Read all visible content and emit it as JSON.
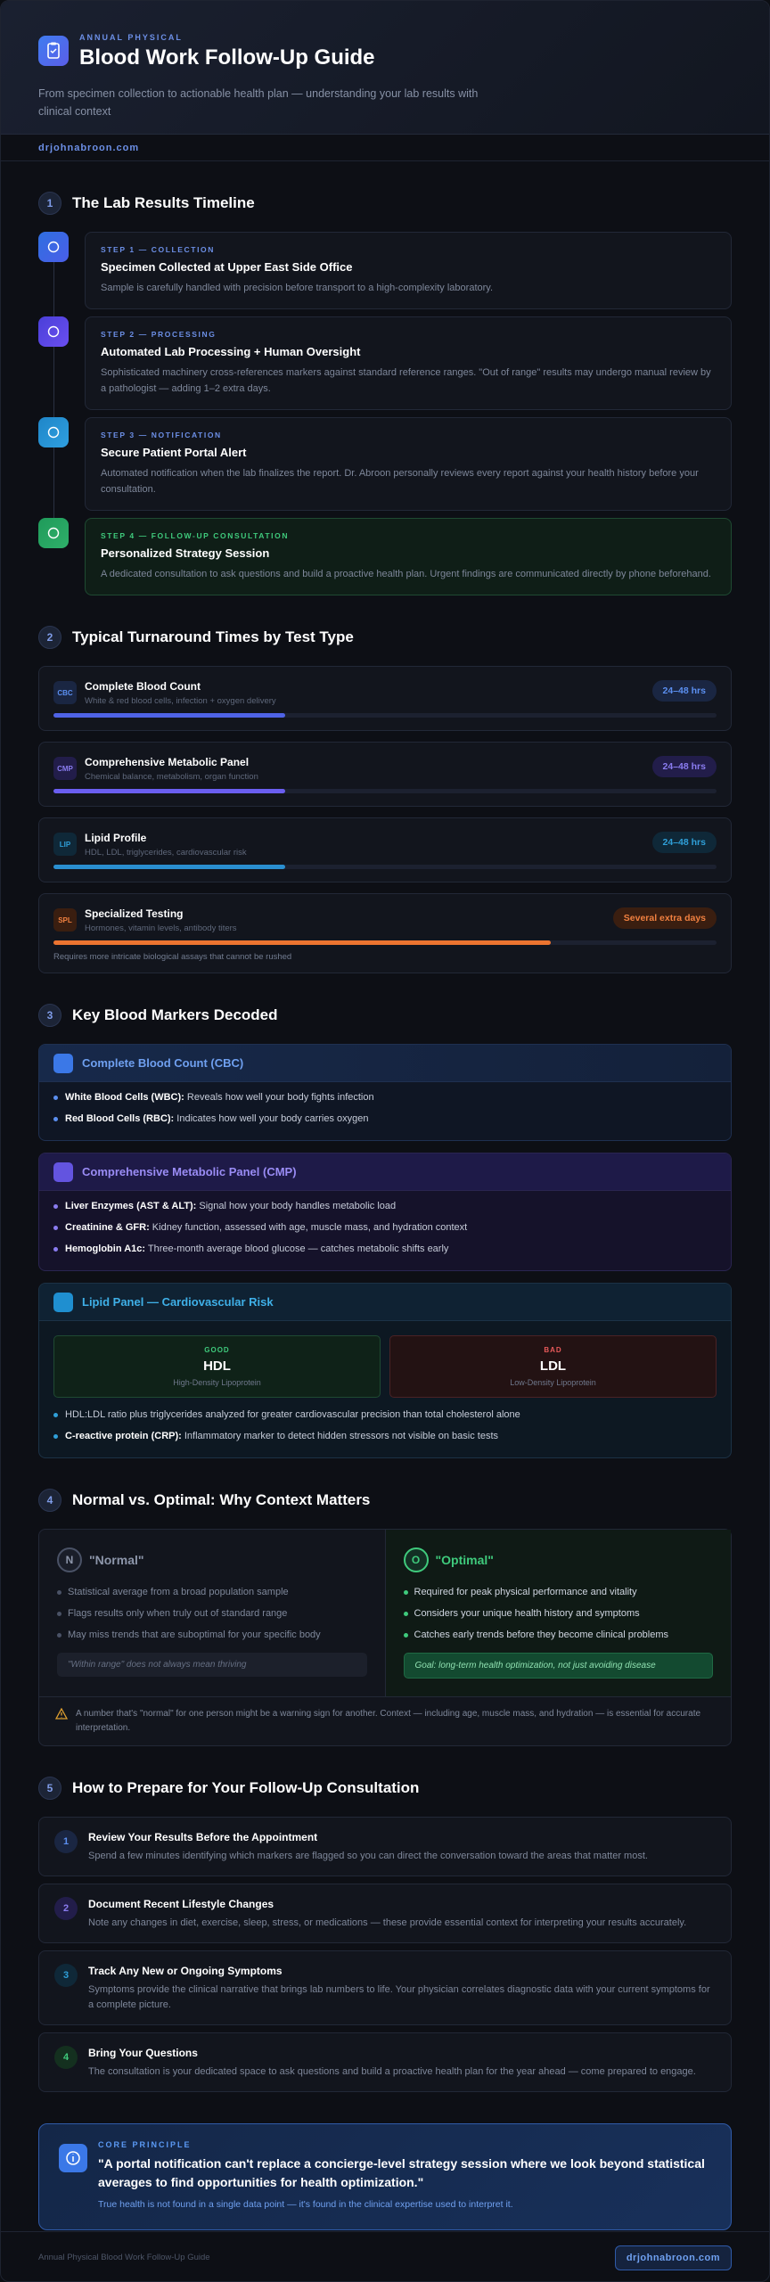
{
  "header": {
    "eyebrow": "ANNUAL PHYSICAL",
    "title": "Blood Work Follow-Up Guide",
    "subtitle": "From specimen collection to actionable health plan — understanding your lab results with clinical context"
  },
  "site": "drjohnabroon.com",
  "timeline": {
    "number": "1",
    "title": "The Lab Results Timeline",
    "steps": [
      {
        "label": "STEP 1 — COLLECTION",
        "title": "Specimen Collected at Upper East Side Office",
        "text": "Sample is carefully handled with precision before transport to a high-complexity laboratory."
      },
      {
        "label": "STEP 2 — PROCESSING",
        "title": "Automated Lab Processing + Human Oversight",
        "text": "Sophisticated machinery cross-references markers against standard reference ranges. \"Out of range\" results may undergo manual review by a pathologist — adding 1–2 extra days."
      },
      {
        "label": "STEP 3 — NOTIFICATION",
        "title": "Secure Patient Portal Alert",
        "text": "Automated notification when the lab finalizes the report. Dr. Abroon personally reviews every report against your health history before your consultation."
      },
      {
        "label": "STEP 4 — FOLLOW-UP CONSULTATION",
        "title": "Personalized Strategy Session",
        "text": "A dedicated consultation to ask questions and build a proactive health plan. Urgent findings are communicated directly by phone beforehand."
      }
    ]
  },
  "turnaround": {
    "number": "2",
    "title": "Typical Turnaround Times by Test Type",
    "tests": [
      {
        "abbr": "CBC",
        "name": "Complete Blood Count",
        "desc": "White & red blood cells, infection + oxygen delivery",
        "time": "24–48 hrs"
      },
      {
        "abbr": "CMP",
        "name": "Comprehensive Metabolic Panel",
        "desc": "Chemical balance, metabolism, organ function",
        "time": "24–48 hrs"
      },
      {
        "abbr": "LIP",
        "name": "Lipid Profile",
        "desc": "HDL, LDL, triglycerides, cardiovascular risk",
        "time": "24–48 hrs"
      },
      {
        "abbr": "SPL",
        "name": "Specialized Testing",
        "desc": "Hormones, vitamin levels, antibody titers",
        "time": "Several extra days",
        "note": "Requires more intricate biological assays that cannot be rushed"
      }
    ]
  },
  "markers": {
    "number": "3",
    "title": "Key Blood Markers Decoded",
    "cbc": {
      "title": "Complete Blood Count (CBC)",
      "items": [
        {
          "term": "White Blood Cells (WBC):",
          "text": "Reveals how well your body fights infection"
        },
        {
          "term": "Red Blood Cells (RBC):",
          "text": "Indicates how well your body carries oxygen"
        }
      ]
    },
    "cmp": {
      "title": "Comprehensive Metabolic Panel (CMP)",
      "items": [
        {
          "term": "Liver Enzymes (AST & ALT):",
          "text": "Signal how your body handles metabolic load"
        },
        {
          "term": "Creatinine & GFR:",
          "text": "Kidney function, assessed with age, muscle mass, and hydration context"
        },
        {
          "term": "Hemoglobin A1c:",
          "text": "Three-month average blood glucose — catches metabolic shifts early"
        }
      ]
    },
    "lipid": {
      "title": "Lipid Panel — Cardiovascular Risk",
      "hdl": {
        "tag": "GOOD",
        "name": "HDL",
        "full": "High-Density Lipoprotein"
      },
      "ldl": {
        "tag": "BAD",
        "name": "LDL",
        "full": "Low-Density Lipoprotein"
      },
      "items": [
        {
          "text": "HDL:LDL ratio plus triglycerides analyzed for greater cardiovascular precision than total cholesterol alone"
        },
        {
          "term": "C-reactive protein (CRP):",
          "text": "Inflammatory marker to detect hidden stressors not visible on basic tests"
        }
      ]
    }
  },
  "comparison": {
    "number": "4",
    "title": "Normal vs. Optimal: Why Context Matters",
    "normal": {
      "letter": "N",
      "title": "\"Normal\"",
      "items": [
        "Statistical average from a broad population sample",
        "Flags results only when truly out of standard range",
        "May miss trends that are suboptimal for your specific body"
      ],
      "note": "\"Within range\" does not always mean thriving"
    },
    "optimal": {
      "letter": "O",
      "title": "\"Optimal\"",
      "items": [
        "Required for peak physical performance and vitality",
        "Considers your unique health history and symptoms",
        "Catches early trends before they become clinical problems"
      ],
      "note": "Goal: long-term health optimization, not just avoiding disease"
    },
    "warning": "A number that's \"normal\" for one person might be a warning sign for another. Context — including age, muscle mass, and hydration — is essential for accurate interpretation."
  },
  "prepare": {
    "number": "5",
    "title": "How to Prepare for Your Follow-Up Consultation",
    "steps": [
      {
        "number": "1",
        "title": "Review Your Results Before the Appointment",
        "text": "Spend a few minutes identifying which markers are flagged so you can direct the conversation toward the areas that matter most."
      },
      {
        "number": "2",
        "title": "Document Recent Lifestyle Changes",
        "text": "Note any changes in diet, exercise, sleep, stress, or medications — these provide essential context for interpreting your results accurately."
      },
      {
        "number": "3",
        "title": "Track Any New or Ongoing Symptoms",
        "text": "Symptoms provide the clinical narrative that brings lab numbers to life. Your physician correlates diagnostic data with your current symptoms for a complete picture."
      },
      {
        "number": "4",
        "title": "Bring Your Questions",
        "text": "The consultation is your dedicated space to ask questions and build a proactive health plan for the year ahead — come prepared to engage."
      }
    ]
  },
  "quote": {
    "label": "CORE PRINCIPLE",
    "text": "\"A portal notification can't replace a concierge-level strategy session where we look beyond statistical averages to find opportunities for health optimization.\"",
    "sub": "True health is not found in a single data point — it's found in the clinical expertise used to interpret it."
  },
  "footer": {
    "text": "Annual Physical Blood Work Follow-Up Guide",
    "link": "drjohnabroon.com"
  }
}
